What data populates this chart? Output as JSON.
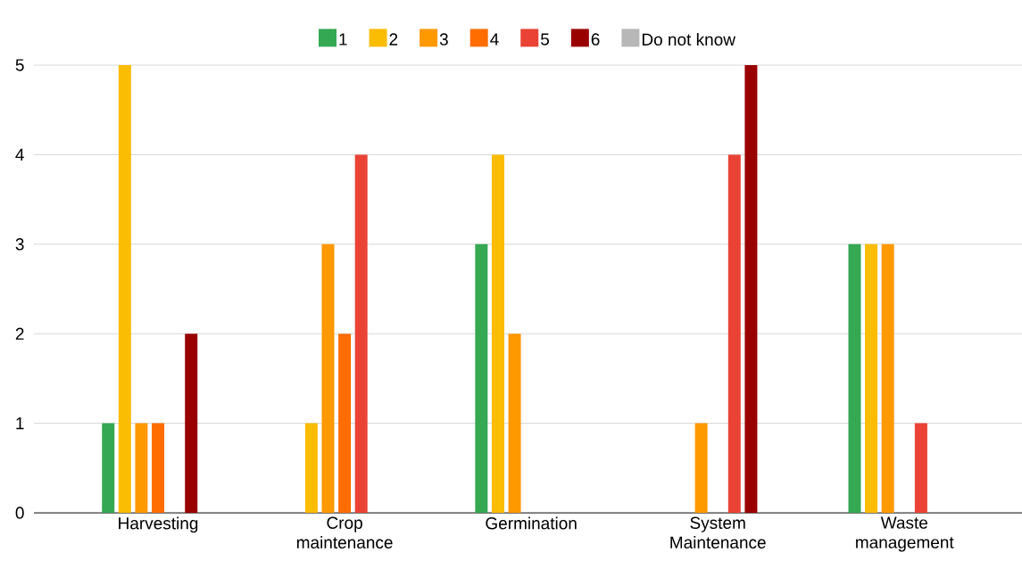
{
  "chart_data": {
    "type": "bar",
    "categories": [
      "Harvesting",
      "Crop maintenance",
      "Germination",
      "System Maintenance",
      "Waste management"
    ],
    "series": [
      {
        "name": "1",
        "color": "#34a853",
        "values": [
          1,
          0,
          3,
          0,
          3
        ]
      },
      {
        "name": "2",
        "color": "#fbbc04",
        "values": [
          5,
          1,
          4,
          0,
          3
        ]
      },
      {
        "name": "3",
        "color": "#ff9900",
        "values": [
          1,
          3,
          2,
          1,
          3
        ]
      },
      {
        "name": "4",
        "color": "#ff6d01",
        "values": [
          1,
          2,
          0,
          0,
          0
        ]
      },
      {
        "name": "5",
        "color": "#ea4335",
        "values": [
          0,
          4,
          0,
          4,
          1
        ]
      },
      {
        "name": "6",
        "color": "#990000",
        "values": [
          2,
          0,
          0,
          5,
          0
        ]
      },
      {
        "name": "Do not know",
        "color": "#b7b7b7",
        "values": [
          0,
          0,
          0,
          0,
          0
        ]
      }
    ],
    "ylim": [
      0,
      5
    ],
    "yticks": [
      0,
      1,
      2,
      3,
      4,
      5
    ],
    "grid": "y",
    "legend": "top"
  }
}
